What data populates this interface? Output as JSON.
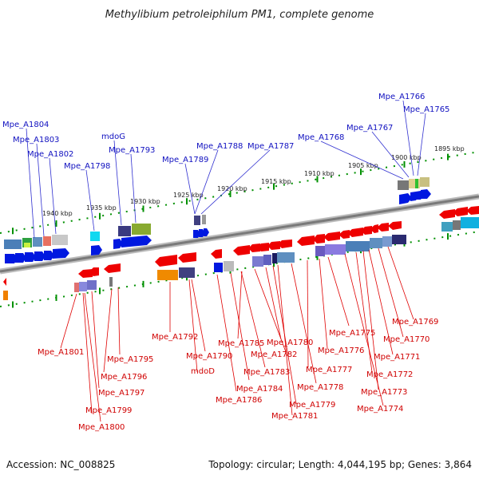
{
  "title": "Methylibium petroleiphilum PM1, complete genome",
  "footer": {
    "accession": "Accession: NC_008825",
    "info": "Topology: circular; Length: 4,044,195 bp; Genes: 3,864"
  },
  "kbp_labels": [
    "1895 kbp",
    "1900 kbp",
    "1905 kbp",
    "1910 kbp",
    "1915 kbp",
    "1920 kbp",
    "1925 kbp",
    "1930 kbp",
    "1935 kbp",
    "1940 kbp"
  ],
  "top_labels": [
    "Mpe_A1766",
    "Mpe_A1765",
    "Mpe_A1767",
    "Mpe_A1768",
    "Mpe_A1787",
    "Mpe_A1788",
    "Mpe_A1789",
    "mdoG",
    "Mpe_A1793",
    "Mpe_A1798",
    "Mpe_A1802",
    "Mpe_A1803",
    "Mpe_A1804"
  ],
  "bottom_labels": [
    "Mpe_A1769",
    "Mpe_A1770",
    "Mpe_A1771",
    "Mpe_A1772",
    "Mpe_A1773",
    "Mpe_A1774",
    "Mpe_A1775",
    "Mpe_A1776",
    "Mpe_A1777",
    "Mpe_A1778",
    "Mpe_A1779",
    "Mpe_A1780",
    "Mpe_A1781",
    "Mpe_A1782",
    "Mpe_A1783",
    "Mpe_A1784",
    "Mpe_A1785",
    "Mpe_A1786",
    "Mpe_A1790",
    "mdoD",
    "Mpe_A1792",
    "Mpe_A1795",
    "Mpe_A1796",
    "Mpe_A1797",
    "Mpe_A1799",
    "Mpe_A1800",
    "Mpe_A1801"
  ],
  "colors": {
    "forward": "#0018e0",
    "reverse": "#ee0000",
    "backbone": "#888888",
    "ticks": "#009000"
  }
}
